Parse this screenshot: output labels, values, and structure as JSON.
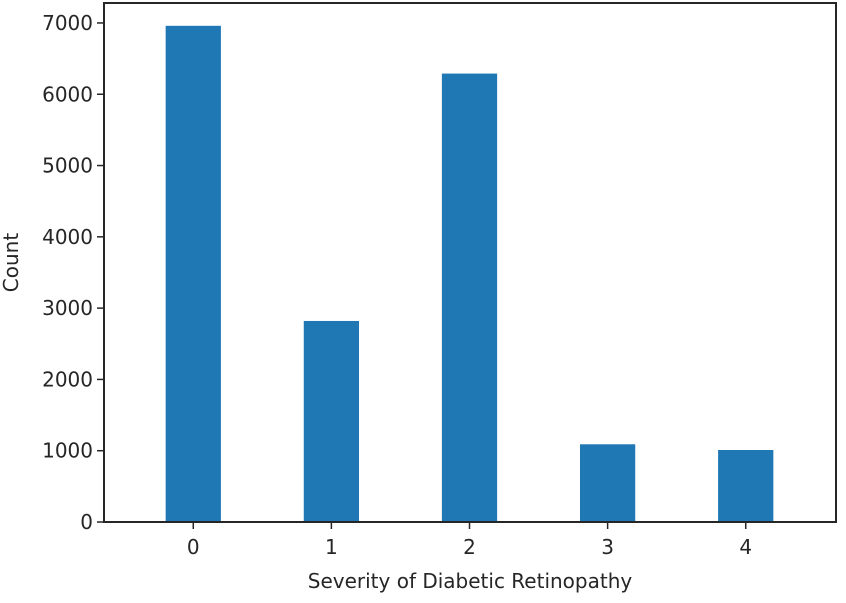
{
  "chart_data": {
    "type": "bar",
    "title": "",
    "xlabel": "Severity of Diabetic Retinopathy",
    "ylabel": "Count",
    "categories": [
      "0",
      "1",
      "2",
      "3",
      "4"
    ],
    "values": [
      6960,
      2820,
      6290,
      1090,
      1010
    ],
    "ylim": [
      0,
      7280
    ],
    "yticks": [
      0,
      1000,
      2000,
      3000,
      4000,
      5000,
      6000,
      7000
    ],
    "grid": false,
    "legend": "none",
    "bar_color": "#1f77b4"
  }
}
